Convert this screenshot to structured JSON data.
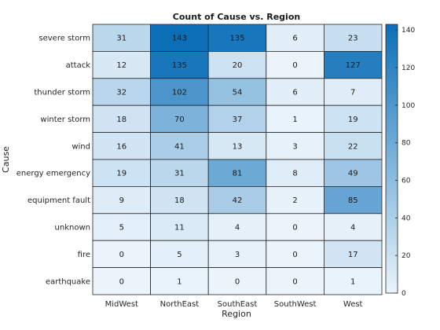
{
  "chart_data": {
    "type": "heatmap",
    "title": "Count of Cause vs. Region",
    "xlabel": "Region",
    "ylabel": "Cause",
    "x_categories": [
      "MidWest",
      "NorthEast",
      "SouthEast",
      "SouthWest",
      "West"
    ],
    "y_categories": [
      "severe storm",
      "attack",
      "thunder storm",
      "winter storm",
      "wind",
      "energy emergency",
      "equipment fault",
      "unknown",
      "fire",
      "earthquake"
    ],
    "values": [
      [
        31,
        143,
        135,
        6,
        23
      ],
      [
        12,
        135,
        20,
        0,
        127
      ],
      [
        32,
        102,
        54,
        6,
        7
      ],
      [
        18,
        70,
        37,
        1,
        19
      ],
      [
        16,
        41,
        13,
        3,
        22
      ],
      [
        19,
        31,
        81,
        8,
        49
      ],
      [
        9,
        18,
        42,
        2,
        85
      ],
      [
        5,
        11,
        4,
        0,
        4
      ],
      [
        0,
        5,
        3,
        0,
        17
      ],
      [
        0,
        1,
        0,
        0,
        1
      ]
    ],
    "color_range": [
      0,
      143
    ],
    "colorbar_ticks": [
      0,
      20,
      40,
      60,
      80,
      100,
      120,
      140
    ],
    "colormap": {
      "low": "#ebf4fb",
      "high": "#0b6fb8"
    }
  }
}
